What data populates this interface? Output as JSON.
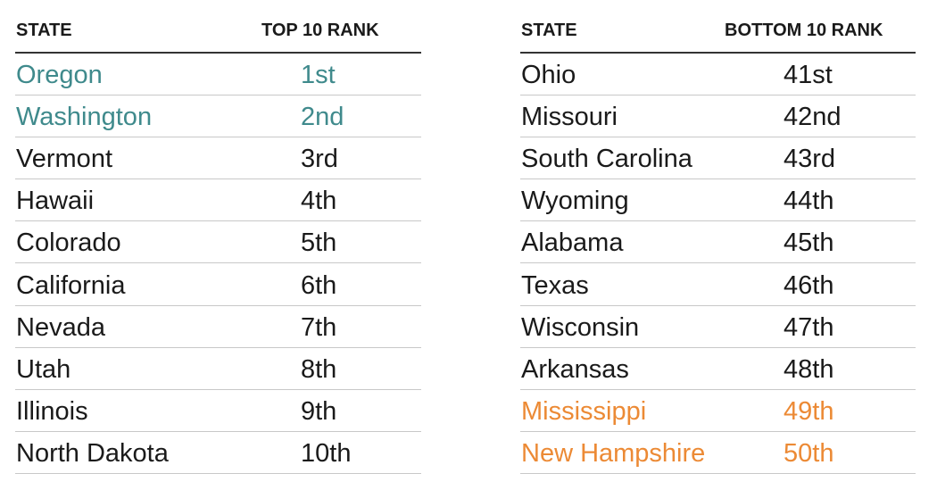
{
  "tables": [
    {
      "header": [
        "STATE",
        "TOP 10 RANK"
      ],
      "rows": [
        [
          "Oregon",
          "1st"
        ],
        [
          "Washington",
          "2nd"
        ],
        [
          "Vermont",
          "3rd"
        ],
        [
          "Hawaii",
          "4th"
        ],
        [
          "Colorado",
          "5th"
        ],
        [
          "California",
          "6th"
        ],
        [
          "Nevada",
          "7th"
        ],
        [
          "Utah",
          "8th"
        ],
        [
          "Illinois",
          "9th"
        ],
        [
          "North Dakota",
          "10th"
        ]
      ],
      "highlight_rows": [
        0,
        1
      ],
      "highlight_color": "#3f8a8c"
    },
    {
      "header": [
        "STATE",
        "BOTTOM 10 RANK"
      ],
      "rows": [
        [
          "Ohio",
          "41st"
        ],
        [
          "Missouri",
          "42nd"
        ],
        [
          "South Carolina",
          "43rd"
        ],
        [
          "Wyoming",
          "44th"
        ],
        [
          "Alabama",
          "45th"
        ],
        [
          "Texas",
          "46th"
        ],
        [
          "Wisconsin",
          "47th"
        ],
        [
          "Arkansas",
          "48th"
        ],
        [
          "Mississippi",
          "49th"
        ],
        [
          "New Hampshire",
          "50th"
        ]
      ],
      "highlight_rows": [
        8,
        9
      ],
      "highlight_color": "#ec8a35"
    }
  ]
}
